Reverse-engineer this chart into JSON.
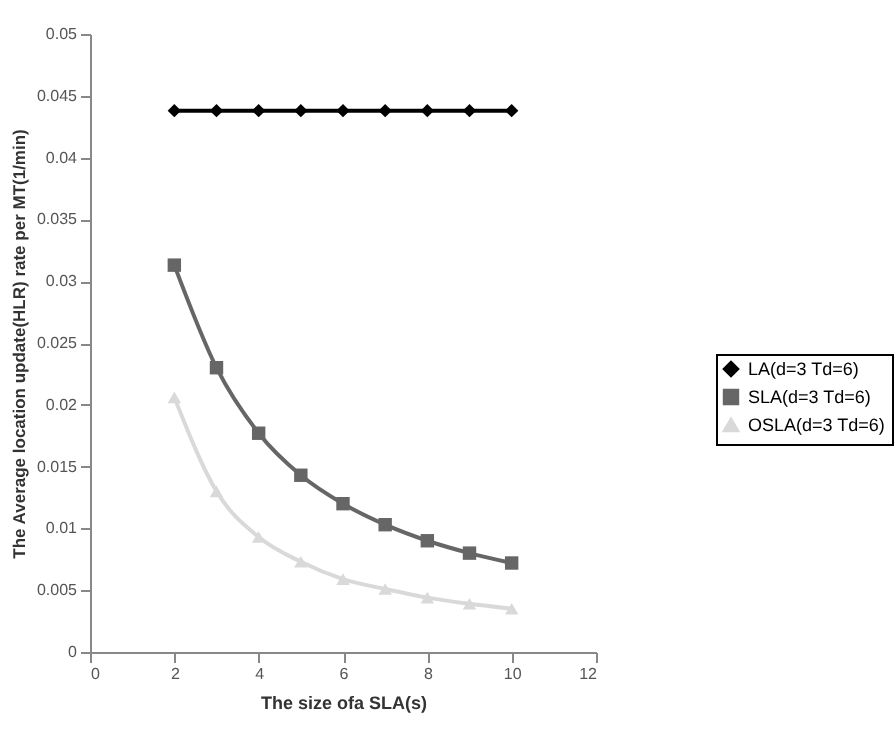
{
  "chart_data": {
    "type": "line",
    "xlabel": "The size ofa SLA(s)",
    "ylabel": "The  Average location update(HLR) rate per MT(1/min)",
    "x": [
      2,
      3,
      4,
      5,
      6,
      7,
      8,
      9,
      10
    ],
    "xlim": [
      0,
      12
    ],
    "xticks": [
      0,
      2,
      4,
      6,
      8,
      10,
      12
    ],
    "ylim": [
      0,
      0.05
    ],
    "yticks": [
      0,
      0.005,
      0.01,
      0.015,
      0.02,
      0.025,
      0.03,
      0.035,
      0.04,
      0.045,
      0.05
    ],
    "grid": false,
    "legend": "right",
    "series": [
      {
        "name": "LA(d=3 Td=6)",
        "color": "#000000",
        "marker": "diamond",
        "values": [
          0.0438,
          0.0438,
          0.0438,
          0.0438,
          0.0438,
          0.0438,
          0.0438,
          0.0438,
          0.0438
        ]
      },
      {
        "name": "SLA(d=3 Td=6)",
        "color": "#666666",
        "marker": "square",
        "values": [
          0.0313,
          0.023,
          0.0177,
          0.0143,
          0.012,
          0.0103,
          0.009,
          0.008,
          0.0072
        ]
      },
      {
        "name": "OSLA(d=3 Td=6)",
        "color": "#d9d9d9",
        "marker": "triangle",
        "values": [
          0.0206,
          0.013,
          0.0093,
          0.0073,
          0.0059,
          0.0051,
          0.0044,
          0.0039,
          0.0035
        ]
      }
    ]
  }
}
